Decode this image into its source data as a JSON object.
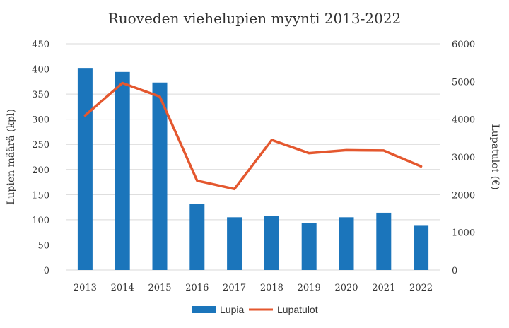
{
  "chart_data": {
    "type": "bar",
    "title": "Ruoveden viehelupien myynti 2013-2022",
    "categories": [
      "2013",
      "2014",
      "2015",
      "2016",
      "2017",
      "2018",
      "2019",
      "2020",
      "2021",
      "2022"
    ],
    "series": [
      {
        "name": "Lupia",
        "type": "bar",
        "axis": "left",
        "color": "#1B75BB",
        "values": [
          402,
          394,
          373,
          131,
          105,
          107,
          93,
          105,
          114,
          88
        ]
      },
      {
        "name": "Lupatulot",
        "type": "line",
        "axis": "right",
        "color": "#E4572E",
        "values": [
          4100,
          4960,
          4600,
          2370,
          2150,
          3450,
          3100,
          3180,
          3170,
          2750
        ]
      }
    ],
    "ylabel": "Lupien määrä (kpl)",
    "ylim": [
      0,
      450
    ],
    "yticks": [
      "0",
      "50",
      "100",
      "150",
      "200",
      "250",
      "300",
      "350",
      "400",
      "450"
    ],
    "y2label": "Lupatulot (€)",
    "y2lim": [
      0,
      6000
    ],
    "y2ticks": [
      "0",
      "1000",
      "2000",
      "3000",
      "4000",
      "5000",
      "6000"
    ],
    "grid": true,
    "legend": "bottom"
  }
}
